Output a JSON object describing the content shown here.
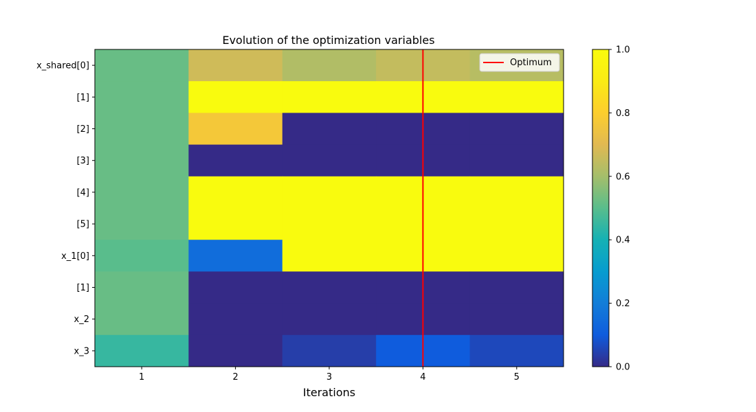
{
  "chart_data": {
    "type": "heatmap",
    "title": "Evolution of the optimization variables",
    "xlabel": "Iterations",
    "ylabel": "",
    "x": [
      1,
      2,
      3,
      4,
      5
    ],
    "row_labels": [
      "x_shared[0]",
      "[1]",
      "[2]",
      "[3]",
      "[4]",
      "[5]",
      "x_1[0]",
      "[1]",
      "x_2",
      "x_3"
    ],
    "values": [
      [
        0.52,
        0.67,
        0.62,
        0.65,
        0.63
      ],
      [
        0.52,
        1.0,
        1.0,
        1.0,
        1.0
      ],
      [
        0.52,
        0.77,
        0.0,
        0.0,
        0.0
      ],
      [
        0.52,
        0.0,
        0.0,
        0.0,
        0.0
      ],
      [
        0.52,
        1.0,
        1.0,
        1.0,
        1.0
      ],
      [
        0.52,
        1.0,
        1.0,
        1.0,
        1.0
      ],
      [
        0.5,
        0.15,
        1.0,
        1.0,
        1.0
      ],
      [
        0.52,
        0.0,
        0.0,
        0.0,
        0.0
      ],
      [
        0.52,
        0.0,
        0.0,
        0.0,
        0.0
      ],
      [
        0.45,
        0.0,
        0.04,
        0.1,
        0.06
      ]
    ],
    "colorbar": {
      "range": [
        0.0,
        1.0
      ],
      "ticks": [
        "0.0",
        "0.2",
        "0.4",
        "0.6",
        "0.8",
        "1.0"
      ]
    },
    "optimum": {
      "iteration": 4,
      "color": "#ff0000",
      "label": "Optimum"
    },
    "legend_position": "top-right",
    "colormap": "parula"
  }
}
